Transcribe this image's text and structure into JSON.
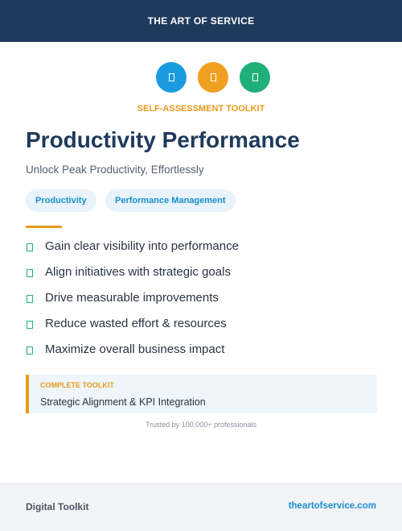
{
  "header": {
    "title": "THE ART OF SERVICE"
  },
  "badge": "SELF-ASSESSMENT TOOLKIT",
  "title": "Productivity Performance",
  "subtitle": "Unlock Peak Productivity, Effortlessly",
  "tags": [
    "Productivity",
    "Performance Management"
  ],
  "bullets": [
    "Gain clear visibility into performance",
    "Align initiatives with strategic goals",
    "Drive measurable improvements",
    "Reduce wasted effort & resources",
    "Maximize overall business impact"
  ],
  "highlight": {
    "label": "COMPLETE TOOLKIT",
    "text": "Strategic Alignment & KPI Integration"
  },
  "trust_note": "Trusted by 100,000+ professionals",
  "footer": {
    "left": "Digital Toolkit",
    "right": "theartofservice.com"
  }
}
